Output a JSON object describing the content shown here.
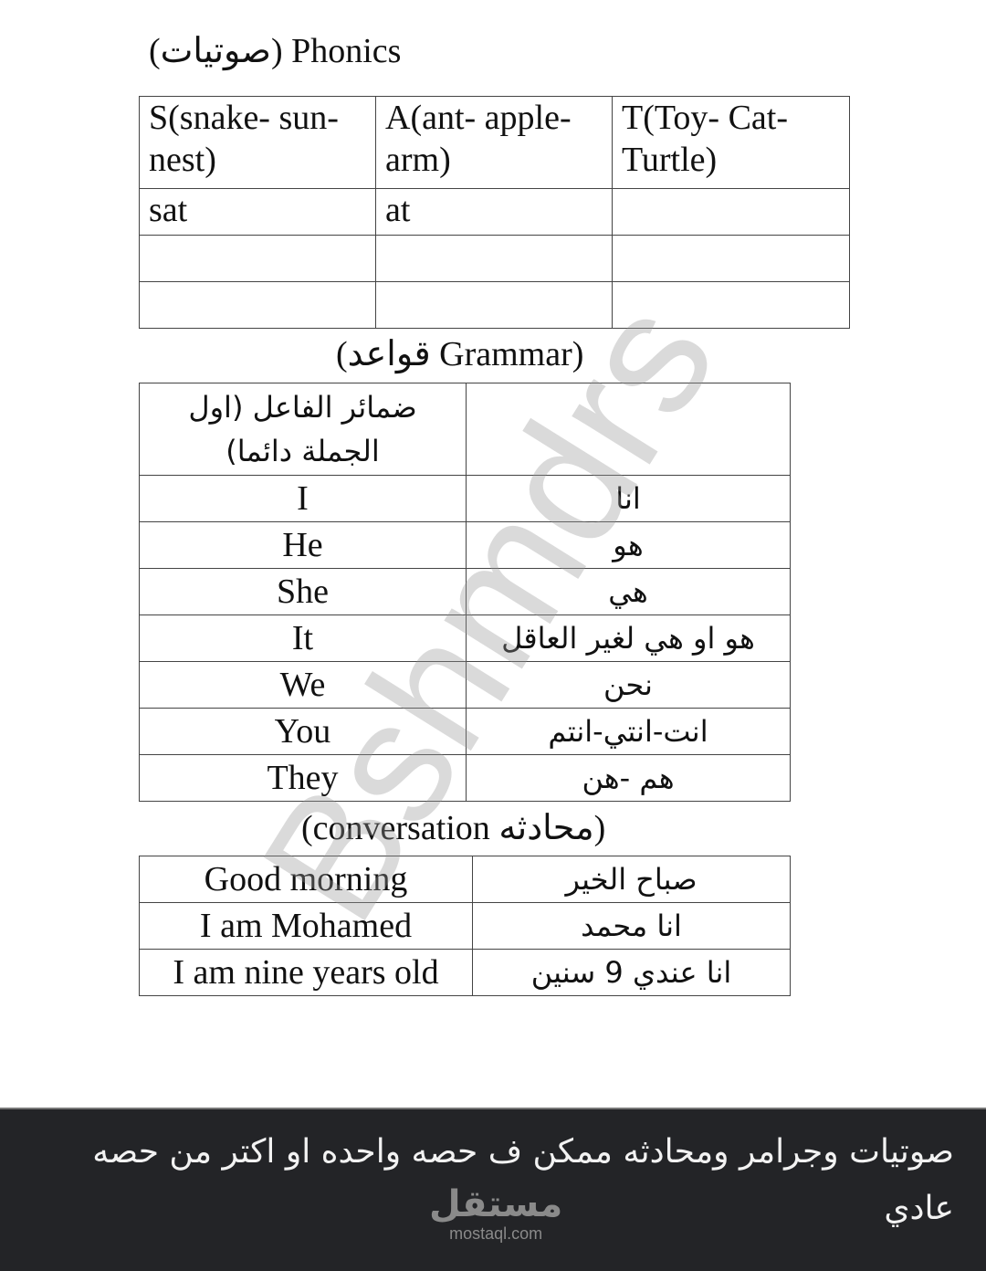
{
  "phonics": {
    "title": "(صوتيات) Phonics",
    "rows": [
      [
        "S(snake- sun- nest)",
        "A(ant- apple- arm)",
        "T(Toy- Cat- Turtle)"
      ],
      [
        "sat",
        "at",
        ""
      ],
      [
        "",
        "",
        ""
      ],
      [
        "",
        "",
        ""
      ]
    ]
  },
  "grammar": {
    "title": "(قواعد Grammar)",
    "header": [
      "ضمائر الفاعل (اول الجملة دائما)",
      ""
    ],
    "rows": [
      [
        "I",
        "انا"
      ],
      [
        "He",
        "هو"
      ],
      [
        "She",
        "هي"
      ],
      [
        "It",
        "هو او هي لغير العاقل"
      ],
      [
        "We",
        "نحن"
      ],
      [
        "You",
        "انت-انتي-انتم"
      ],
      [
        "They",
        "هم -هن"
      ]
    ]
  },
  "conversation": {
    "title": "(conversation محادثه)",
    "rows": [
      [
        "Good morning",
        "صباح الخير"
      ],
      [
        "I am Mohamed",
        "انا محمد"
      ],
      [
        "I am nine years old",
        "انا عندي 9 سنين"
      ]
    ]
  },
  "watermark": "Bshmdrs",
  "caption": "صوتيات وجرامر ومحادثه ممكن ف حصه واحده او اكتر من حصه عادي",
  "logo": {
    "arabic": "مستقل",
    "url": "mostaql.com"
  }
}
